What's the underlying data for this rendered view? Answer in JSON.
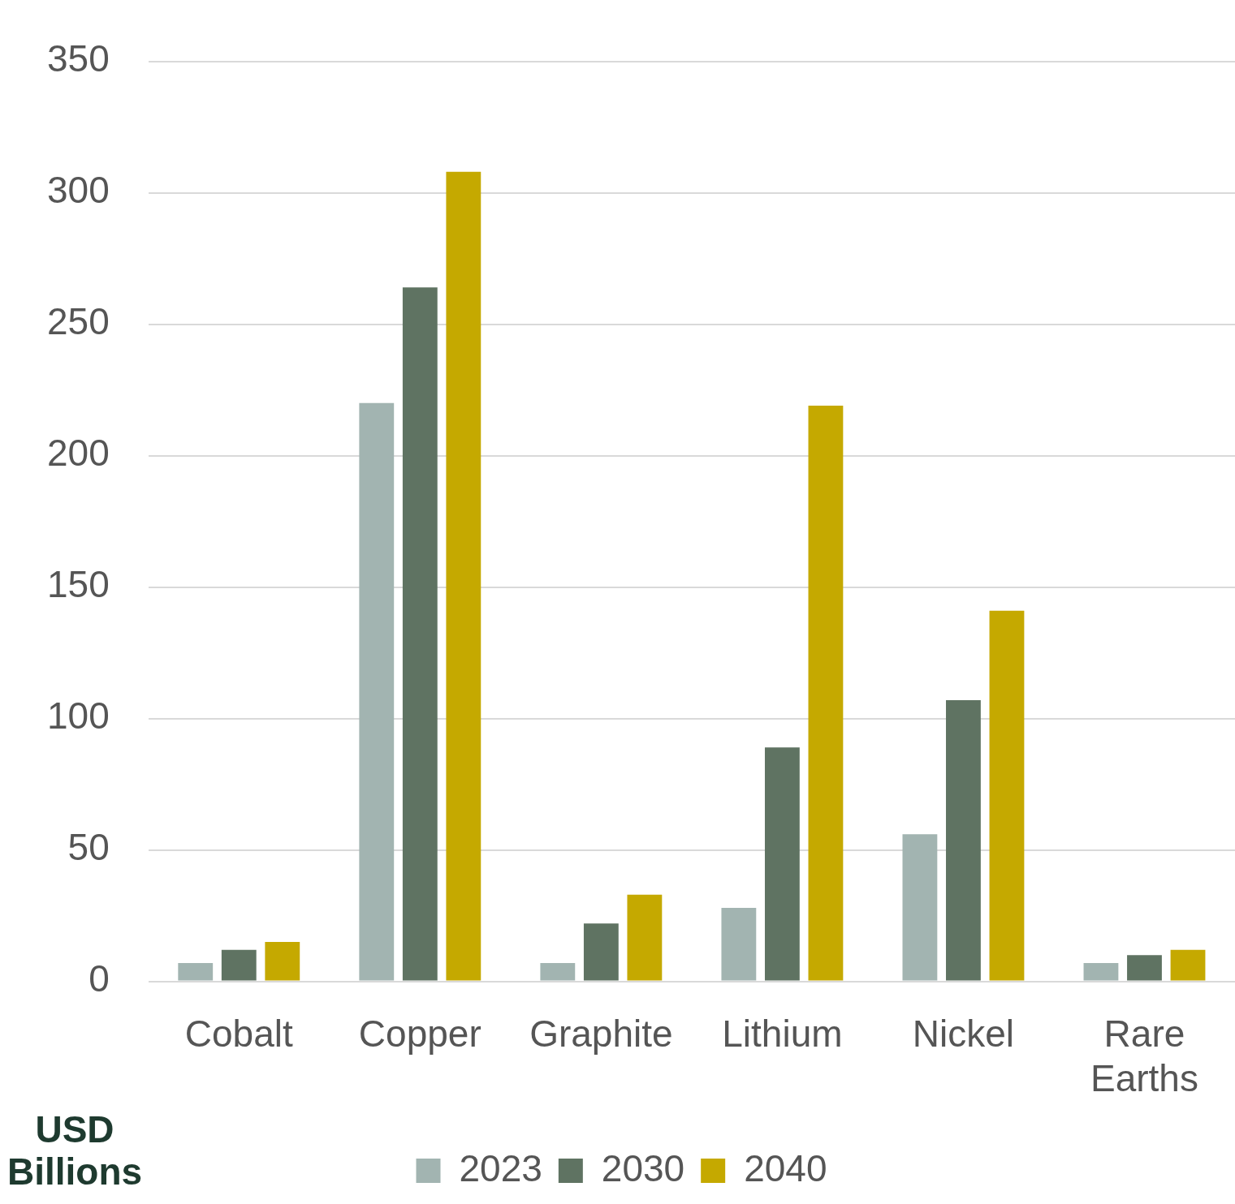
{
  "chart_data": {
    "type": "bar",
    "ylabel": "USD Billions",
    "categories": [
      "Cobalt",
      "Copper",
      "Graphite",
      "Lithium",
      "Nickel",
      "Rare Earths"
    ],
    "series": [
      {
        "name": "2023",
        "color": "#a2b4b1",
        "values": [
          7,
          220,
          7,
          28,
          56,
          7
        ]
      },
      {
        "name": "2030",
        "color": "#5f7362",
        "values": [
          12,
          264,
          22,
          89,
          107,
          10
        ]
      },
      {
        "name": "2040",
        "color": "#c5a900",
        "values": [
          15,
          308,
          33,
          219,
          141,
          12
        ]
      }
    ],
    "ylim": [
      0,
      350
    ],
    "yticks": [
      0,
      50,
      100,
      150,
      200,
      250,
      300,
      350
    ],
    "grid": "y",
    "legend": "bottom"
  }
}
